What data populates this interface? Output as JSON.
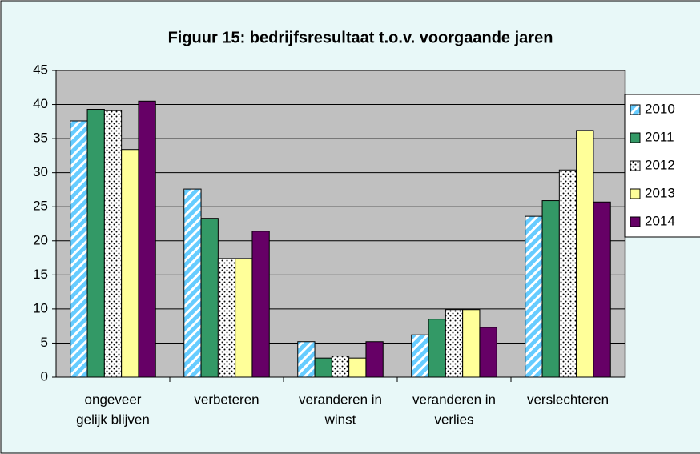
{
  "chart_data": {
    "type": "bar",
    "title": "Figuur 15: bedrijfsresultaat t.o.v. voorgaande jaren",
    "categories": [
      [
        "ongeveer",
        "gelijk blijven"
      ],
      [
        "verbeteren"
      ],
      [
        "veranderen in",
        "winst"
      ],
      [
        "veranderen in",
        "verlies"
      ],
      [
        "verslechteren"
      ]
    ],
    "series": [
      {
        "name": "2010",
        "color": "#66ccff",
        "pattern": "stripes",
        "values": [
          37.6,
          27.6,
          5.2,
          6.2,
          23.6
        ]
      },
      {
        "name": "2011",
        "color": "#339966",
        "pattern": "solid",
        "values": [
          39.3,
          23.3,
          2.8,
          8.5,
          25.9
        ]
      },
      {
        "name": "2012",
        "color": "#ffffff",
        "pattern": "dots",
        "values": [
          39.1,
          17.4,
          3.1,
          9.9,
          30.4
        ]
      },
      {
        "name": "2013",
        "color": "#ffff99",
        "pattern": "solid",
        "values": [
          33.4,
          17.4,
          2.8,
          9.9,
          36.2
        ]
      },
      {
        "name": "2014",
        "color": "#660066",
        "pattern": "solid",
        "values": [
          40.5,
          21.4,
          5.2,
          7.3,
          25.7
        ]
      }
    ],
    "ylim": [
      0,
      45
    ],
    "yticks": [
      0,
      5,
      10,
      15,
      20,
      25,
      30,
      35,
      40,
      45
    ],
    "grid": true,
    "legend": "right"
  }
}
